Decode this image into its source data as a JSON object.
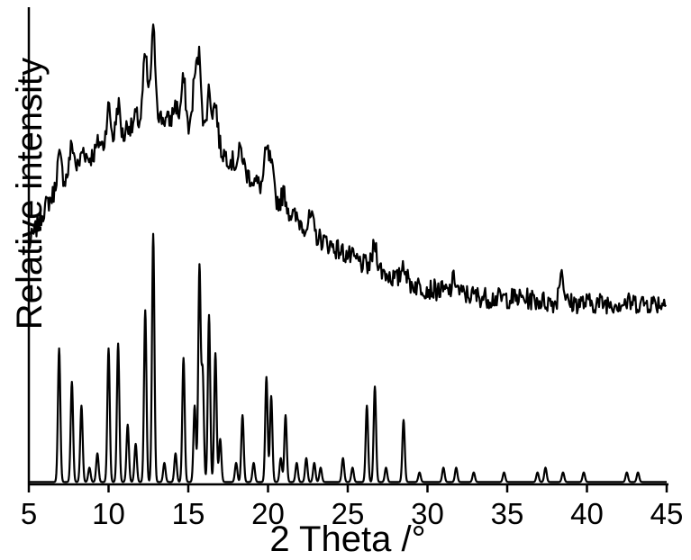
{
  "chart_data": {
    "type": "line",
    "title": "",
    "xlabel": "2 Theta /°",
    "ylabel": "Relative intensity",
    "xlim": [
      5,
      45
    ],
    "x_ticks": [
      5,
      10,
      15,
      20,
      25,
      30,
      35,
      40,
      45
    ],
    "y_ticks_shown": false,
    "grid": false,
    "legend": "none",
    "series": [
      {
        "style": "experimental, noisy, offset upward",
        "background_anchors": [
          [
            5,
            50
          ],
          [
            6,
            58
          ],
          [
            7,
            63
          ],
          [
            8,
            66
          ],
          [
            9,
            69
          ],
          [
            10,
            71
          ],
          [
            11,
            72
          ],
          [
            12,
            75
          ],
          [
            13,
            77
          ],
          [
            14,
            76
          ],
          [
            15,
            74
          ],
          [
            16,
            72
          ],
          [
            17,
            70
          ],
          [
            18,
            67
          ],
          [
            19,
            64
          ],
          [
            20,
            61
          ],
          [
            21,
            58
          ],
          [
            22,
            55
          ],
          [
            23,
            52
          ],
          [
            24,
            50
          ],
          [
            25,
            48
          ],
          [
            26,
            46
          ],
          [
            27,
            45
          ],
          [
            28,
            43
          ],
          [
            29,
            42
          ],
          [
            30,
            41
          ],
          [
            32,
            40
          ],
          [
            34,
            39
          ],
          [
            36,
            39
          ],
          [
            38,
            38
          ],
          [
            40,
            38
          ],
          [
            42,
            38
          ],
          [
            45,
            38
          ]
        ],
        "peaks": [
          [
            6.9,
            6
          ],
          [
            7.7,
            6
          ],
          [
            8.4,
            3
          ],
          [
            9.4,
            2
          ],
          [
            10.0,
            8
          ],
          [
            10.6,
            8
          ],
          [
            11.2,
            3
          ],
          [
            11.7,
            3
          ],
          [
            12.3,
            14
          ],
          [
            12.8,
            18
          ],
          [
            14.2,
            4
          ],
          [
            14.7,
            10
          ],
          [
            15.4,
            11
          ],
          [
            15.7,
            16
          ],
          [
            16.3,
            11
          ],
          [
            16.7,
            9
          ],
          [
            18.3,
            4
          ],
          [
            19.9,
            8
          ],
          [
            20.2,
            6
          ],
          [
            21.0,
            3
          ],
          [
            22.7,
            3
          ],
          [
            26.7,
            5
          ],
          [
            28.5,
            4
          ],
          [
            31.7,
            3
          ],
          [
            38.4,
            7
          ]
        ],
        "noise_amplitude": 2.2
      },
      {
        "style": "simulated, sharp peaks, baseline at bottom",
        "baseline": 0.5,
        "peaks": [
          [
            6.9,
            28
          ],
          [
            7.7,
            21
          ],
          [
            8.3,
            16
          ],
          [
            8.8,
            3
          ],
          [
            9.3,
            6
          ],
          [
            10.0,
            28
          ],
          [
            10.6,
            29
          ],
          [
            11.2,
            12
          ],
          [
            11.7,
            8
          ],
          [
            12.3,
            36
          ],
          [
            12.8,
            52
          ],
          [
            13.5,
            4
          ],
          [
            14.2,
            6
          ],
          [
            14.7,
            26
          ],
          [
            15.4,
            16
          ],
          [
            15.7,
            45
          ],
          [
            15.9,
            23
          ],
          [
            16.3,
            35
          ],
          [
            16.7,
            27
          ],
          [
            17.0,
            9
          ],
          [
            18.0,
            4
          ],
          [
            18.4,
            14
          ],
          [
            19.1,
            4
          ],
          [
            19.9,
            22
          ],
          [
            20.2,
            18
          ],
          [
            20.8,
            5
          ],
          [
            21.1,
            14
          ],
          [
            21.8,
            4
          ],
          [
            22.4,
            5
          ],
          [
            22.9,
            4
          ],
          [
            23.3,
            3
          ],
          [
            24.7,
            5
          ],
          [
            25.3,
            3
          ],
          [
            26.2,
            16
          ],
          [
            26.7,
            20
          ],
          [
            27.4,
            3
          ],
          [
            28.5,
            13
          ],
          [
            29.5,
            2
          ],
          [
            31.0,
            3
          ],
          [
            31.8,
            3
          ],
          [
            32.9,
            2
          ],
          [
            34.8,
            2
          ],
          [
            36.9,
            2
          ],
          [
            37.4,
            3
          ],
          [
            38.5,
            2
          ],
          [
            39.8,
            2
          ],
          [
            42.5,
            2
          ],
          [
            43.2,
            2
          ]
        ]
      }
    ]
  }
}
